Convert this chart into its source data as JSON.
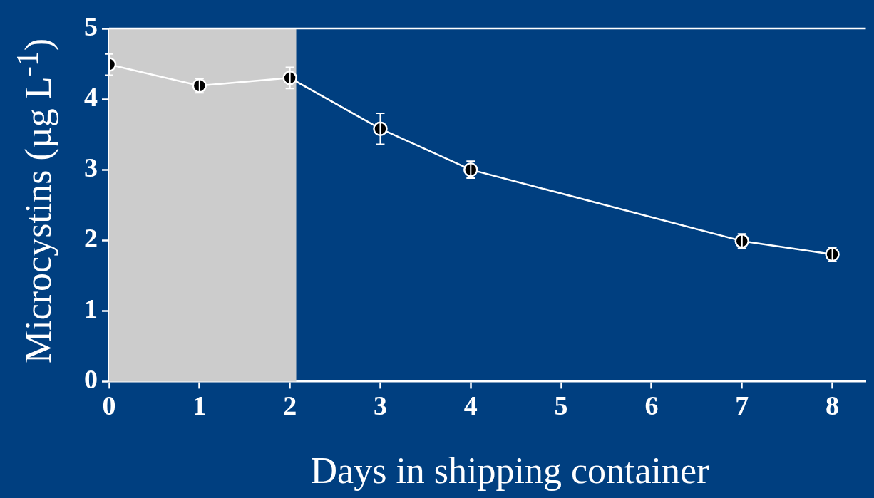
{
  "chart_data": {
    "type": "line",
    "xlabel": "Days in shipping container",
    "ylabel": "Microcystins (µg L$^{-1}$)",
    "x": [
      0,
      1,
      2,
      3,
      4,
      7,
      8
    ],
    "series": [
      {
        "color": "#ffffff",
        "values": [
          4.49,
          4.19,
          4.3,
          3.58,
          3.0,
          1.99,
          1.8
        ],
        "errors": [
          0.15,
          0.1,
          0.15,
          0.22,
          0.12,
          0.1,
          0.1
        ]
      }
    ],
    "xlim": [
      0,
      8.37
    ],
    "xticks": [
      0,
      1,
      2,
      3,
      4,
      5,
      6,
      7,
      8
    ],
    "ylim": [
      0,
      5
    ],
    "yticks": [
      0,
      1,
      2,
      3,
      4,
      5
    ],
    "bands": [
      {
        "axis": "x",
        "from": 0,
        "to": 2.07,
        "color": "#cccccc"
      }
    ],
    "grid": false,
    "legend": false,
    "marker": "circle",
    "line_style": "solid"
  }
}
